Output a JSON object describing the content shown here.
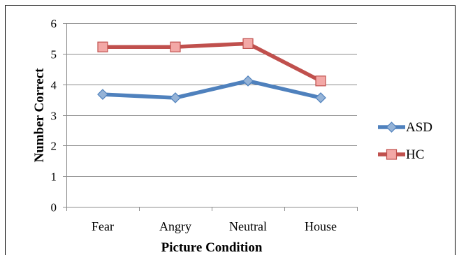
{
  "chart_data": {
    "type": "line",
    "categories": [
      "Fear",
      "Angry",
      "Neutral",
      "House"
    ],
    "series": [
      {
        "name": "ASD",
        "values": [
          3.67,
          3.56,
          4.11,
          3.56
        ],
        "color": "#4f81bd",
        "marker_fill": "#95b3d7",
        "marker": "diamond"
      },
      {
        "name": "HC",
        "values": [
          5.22,
          5.22,
          5.33,
          4.11
        ],
        "color": "#c0504d",
        "marker_fill": "#f3a8a6",
        "marker": "square"
      }
    ],
    "xlabel": "Picture Condition",
    "ylabel": "Number Correct",
    "ylim": [
      0,
      6
    ],
    "yticks": [
      "0",
      "1",
      "2",
      "3",
      "4",
      "5",
      "6"
    ],
    "grid": true,
    "legend": "right"
  }
}
